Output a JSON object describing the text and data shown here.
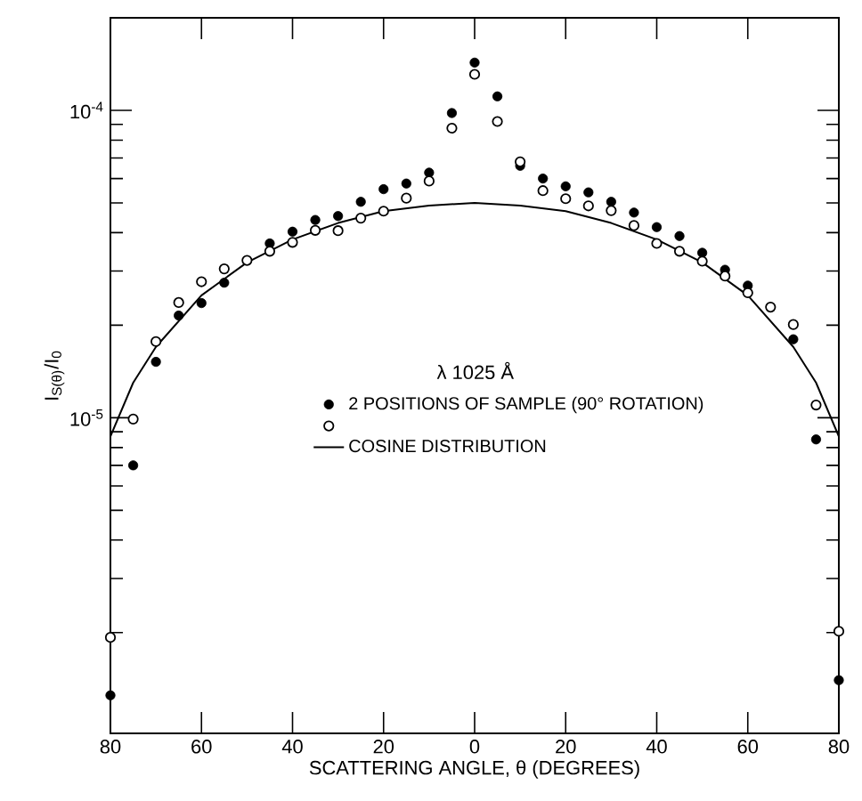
{
  "chart_data": {
    "type": "scatter",
    "xlabel": "SCATTERING ANGLE, θ (DEGREES)",
    "ylabel": "I$_{S(θ)}$/I$_{0}$",
    "x": [
      -80,
      -75,
      -70,
      -65,
      -60,
      -55,
      -50,
      -45,
      -40,
      -35,
      -30,
      -25,
      -20,
      -15,
      -10,
      -5,
      0,
      5,
      10,
      15,
      20,
      25,
      30,
      35,
      40,
      45,
      50,
      55,
      60,
      65,
      70,
      75,
      80
    ],
    "xlim": [
      -80,
      80
    ],
    "xticks": [
      {
        "value": -80,
        "label": "80"
      },
      {
        "value": -60,
        "label": "60"
      },
      {
        "value": -40,
        "label": "40"
      },
      {
        "value": -20,
        "label": "20"
      },
      0,
      20,
      40,
      60,
      80
    ],
    "ylim": [
      9.4e-07,
      0.0002
    ],
    "yticks": [
      {
        "value": 0.0001,
        "label": "10$^{-4}$"
      },
      {
        "value": 1e-05,
        "label": "10$^{-5}$"
      },
      {
        "value": 2e-06,
        "label": null
      },
      {
        "value": 3e-06,
        "label": null
      },
      {
        "value": 4e-06,
        "label": null
      },
      {
        "value": 5e-06,
        "label": null
      },
      {
        "value": 6e-06,
        "label": null
      },
      {
        "value": 7e-06,
        "label": null
      },
      {
        "value": 8e-06,
        "label": null
      },
      {
        "value": 9e-06,
        "label": null
      },
      {
        "value": 2e-05,
        "label": null
      },
      {
        "value": 3e-05,
        "label": null
      },
      {
        "value": 4e-05,
        "label": null
      },
      {
        "value": 5e-05,
        "label": null
      },
      {
        "value": 6e-05,
        "label": null
      },
      {
        "value": 7e-05,
        "label": null
      },
      {
        "value": 8e-05,
        "label": null
      },
      {
        "value": 9e-05,
        "label": null
      }
    ],
    "log": true,
    "marker": "circle",
    "legend": "center",
    "annotations": [
      "λ 1025 Å"
    ],
    "series": [
      {
        "name": "2 POSITIONS OF SAMPLE (90° ROTATION)",
        "color": "#000000",
        "values": [
          1.25e-06,
          7e-06,
          1.52e-05,
          2.15e-05,
          2.36e-05,
          2.75e-05,
          null,
          3.69e-05,
          4.03e-05,
          4.4e-05,
          4.53e-05,
          5.04e-05,
          5.54e-05,
          5.78e-05,
          6.27e-05,
          9.8e-05,
          0.000143,
          0.000111,
          6.6e-05,
          6e-05,
          5.66e-05,
          5.41e-05,
          5.04e-05,
          4.65e-05,
          4.17e-05,
          3.9e-05,
          3.44e-05,
          3.03e-05,
          2.69e-05,
          null,
          1.8e-05,
          8.5e-06,
          1.4e-06
        ]
      },
      {
        "color": "#000000",
        "values": [
          1.93e-06,
          9.9e-06,
          1.77e-05,
          2.37e-05,
          2.77e-05,
          3.05e-05,
          3.25e-05,
          3.48e-05,
          3.72e-05,
          4.07e-05,
          4.06e-05,
          4.46e-05,
          4.7e-05,
          5.18e-05,
          5.89e-05,
          8.75e-05,
          0.000131,
          9.2e-05,
          6.8e-05,
          5.48e-05,
          5.16e-05,
          4.89e-05,
          4.72e-05,
          4.22e-05,
          3.69e-05,
          3.48e-05,
          3.23e-05,
          2.89e-05,
          2.55e-05,
          2.29e-05,
          2.01e-05,
          1.1e-05,
          2.02e-06
        ]
      },
      {
        "type": "line",
        "name": "COSINE DISTRIBUTION",
        "color": "#000000",
        "marker": "none",
        "x": [
          -80,
          -75,
          -70,
          -60,
          -50,
          -40,
          -30,
          -20,
          -10,
          0,
          10,
          20,
          30,
          40,
          50,
          60,
          70,
          75,
          80
        ],
        "values": [
          8.7e-06,
          1.3e-05,
          1.7e-05,
          2.5e-05,
          3.2e-05,
          3.8e-05,
          4.3e-05,
          4.7e-05,
          4.9e-05,
          5e-05,
          4.9e-05,
          4.7e-05,
          4.3e-05,
          3.8e-05,
          3.2e-05,
          2.5e-05,
          1.7e-05,
          1.3e-05,
          8.7e-06
        ]
      }
    ]
  }
}
